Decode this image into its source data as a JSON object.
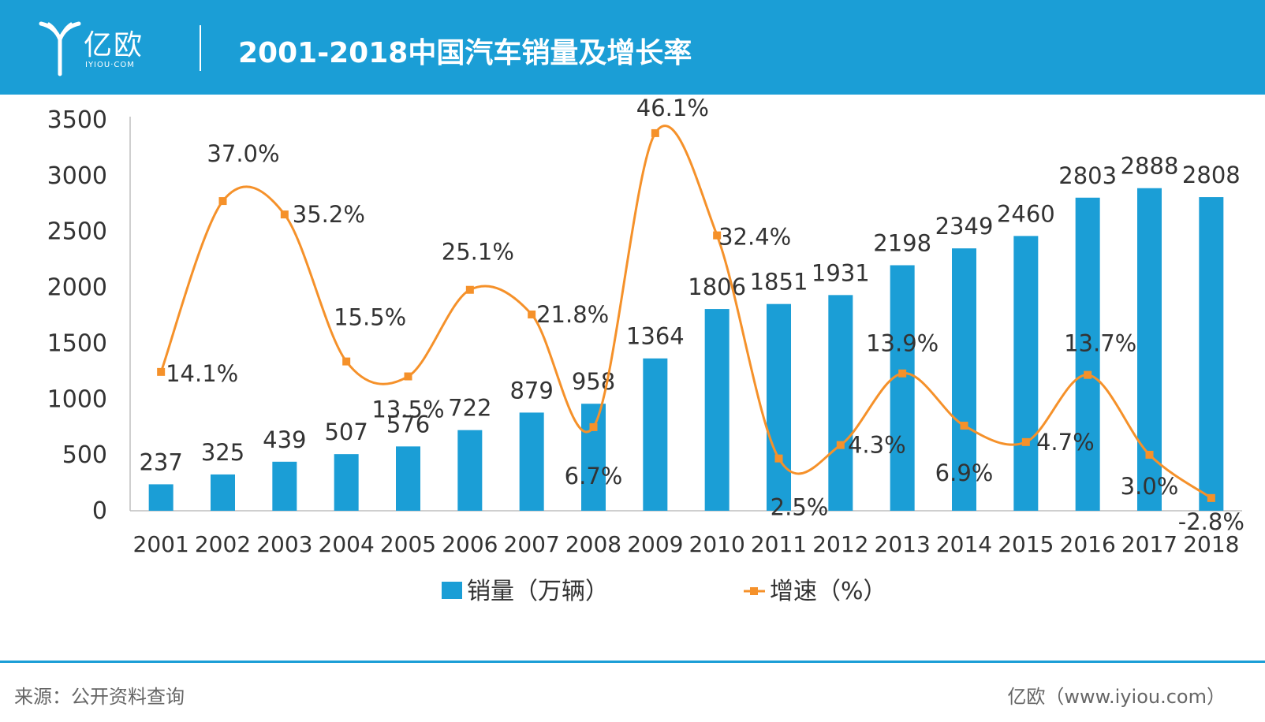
{
  "header": {
    "brand": "亿欧",
    "brand_sub": "IYIOU·COM",
    "title": "2001-2018中国汽车销量及增长率"
  },
  "footer": {
    "source": "来源：公开资料查询",
    "site": "亿欧（www.iyiou.com）"
  },
  "colors": {
    "brand_blue": "#1b9ed6",
    "bar": "#1b9ed6",
    "line": "#f5912a",
    "text": "#333333"
  },
  "chart_data": {
    "type": "bar",
    "title": "2001-2018中国汽车销量及增长率",
    "categories": [
      "2001",
      "2002",
      "2003",
      "2004",
      "2005",
      "2006",
      "2007",
      "2008",
      "2009",
      "2010",
      "2011",
      "2012",
      "2013",
      "2014",
      "2015",
      "2016",
      "2017",
      "2018"
    ],
    "series": [
      {
        "name": "销量（万辆）",
        "type": "bar",
        "axis": "left",
        "values": [
          237,
          325,
          439,
          507,
          576,
          722,
          879,
          958,
          1364,
          1806,
          1851,
          1931,
          2198,
          2349,
          2460,
          2803,
          2888,
          2808
        ],
        "labels": [
          "237",
          "325",
          "439",
          "507",
          "576",
          "722",
          "879",
          "958",
          "1364",
          "1806",
          "1851",
          "1931",
          "2198",
          "2349",
          "2460",
          "2803",
          "2888",
          "2808"
        ]
      },
      {
        "name": "增速（%）",
        "type": "line",
        "axis": "right-hidden",
        "values": [
          14.1,
          37.0,
          35.2,
          15.5,
          13.5,
          25.1,
          21.8,
          6.7,
          46.1,
          32.4,
          2.5,
          4.3,
          13.9,
          6.9,
          4.7,
          13.7,
          3.0,
          -2.8
        ],
        "labels": [
          "14.1%",
          "37.0%",
          "35.2%",
          "15.5%",
          "13.5%",
          "25.1%",
          "21.8%",
          "6.7%",
          "46.1%",
          "32.4%",
          "2.5%",
          "4.3%",
          "13.9%",
          "6.9%",
          "4.7%",
          "13.7%",
          "3.0%",
          "-2.8%"
        ]
      }
    ],
    "y_ticks": [
      "0",
      "500",
      "1000",
      "1500",
      "2000",
      "2500",
      "3000",
      "3500"
    ],
    "ylim": [
      0,
      3500
    ],
    "grid": false,
    "legend_position": "bottom",
    "smooth_line": true
  }
}
